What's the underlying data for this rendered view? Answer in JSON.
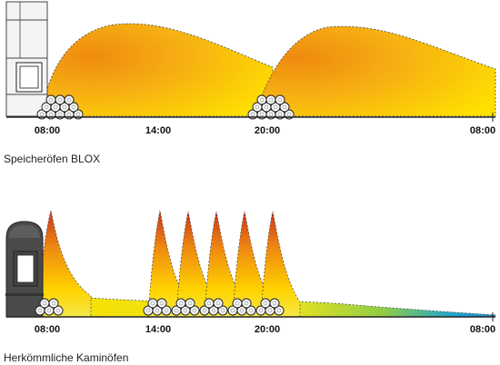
{
  "colors": {
    "warm_red": "#d94a1c",
    "warm_orange": "#ef8a10",
    "warm_yellow": "#ffe000",
    "cool_green": "#9bd040",
    "cool_blue": "#1aa0d8",
    "axis": "#222222",
    "stove_dark": "#4a4a4a",
    "stove_light": "#f4f4f4"
  },
  "top_panel": {
    "caption": "Speicheröfen BLOX",
    "time_labels": [
      "08:00",
      "14:00",
      "20:00",
      "08:00"
    ],
    "stove_icon": "storage-stove-icon",
    "wood_icon": "log-pile-icon"
  },
  "bottom_panel": {
    "caption": "Herkömmliche Kaminöfen",
    "time_labels": [
      "08:00",
      "14:00",
      "20:00",
      "08:00"
    ],
    "stove_icon": "fireplace-stove-icon",
    "wood_icon": "log-pile-icon"
  }
}
